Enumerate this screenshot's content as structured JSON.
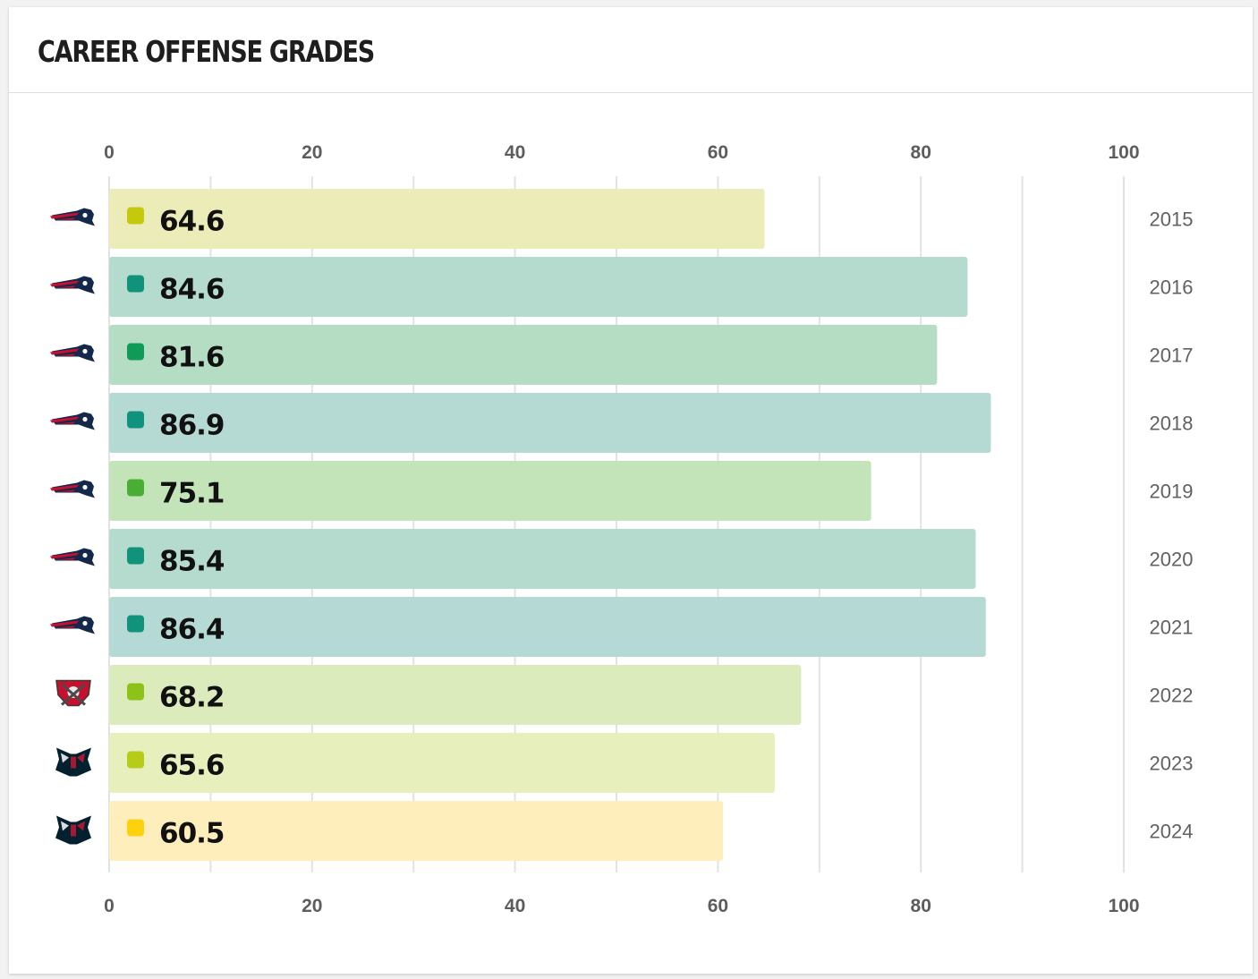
{
  "card": {
    "title": "CAREER OFFENSE GRADES"
  },
  "chart_data": {
    "type": "bar",
    "orientation": "horizontal",
    "title": "CAREER OFFENSE GRADES",
    "xlim": [
      0,
      100
    ],
    "x_ticks": [
      0,
      20,
      40,
      60,
      80,
      100
    ],
    "grid": true,
    "categories": [
      "2015",
      "2016",
      "2017",
      "2018",
      "2019",
      "2020",
      "2021",
      "2022",
      "2023",
      "2024"
    ],
    "values": [
      64.6,
      84.6,
      81.6,
      86.9,
      75.1,
      85.4,
      86.4,
      68.2,
      65.6,
      60.5
    ],
    "value_labels": [
      "64.6",
      "84.6",
      "81.6",
      "86.9",
      "75.1",
      "85.4",
      "86.4",
      "68.2",
      "65.6",
      "60.5"
    ],
    "teams": [
      "patriots",
      "patriots",
      "patriots",
      "patriots",
      "patriots",
      "patriots",
      "patriots",
      "buccaneers",
      "texans",
      "texans"
    ],
    "dot_colors": [
      "#c5c90e",
      "#10937a",
      "#0f9a58",
      "#10927e",
      "#4aae34",
      "#10937a",
      "#10937a",
      "#8dc219",
      "#b7cb19",
      "#fdd10e"
    ],
    "bar_colors": [
      "#ececb8",
      "#b5dbcf",
      "#b5ddc3",
      "#b5d9d3",
      "#c3e4b9",
      "#b5dbcf",
      "#b5d9d4",
      "#dcebbb",
      "#e7efbd",
      "#fdeebb"
    ]
  }
}
